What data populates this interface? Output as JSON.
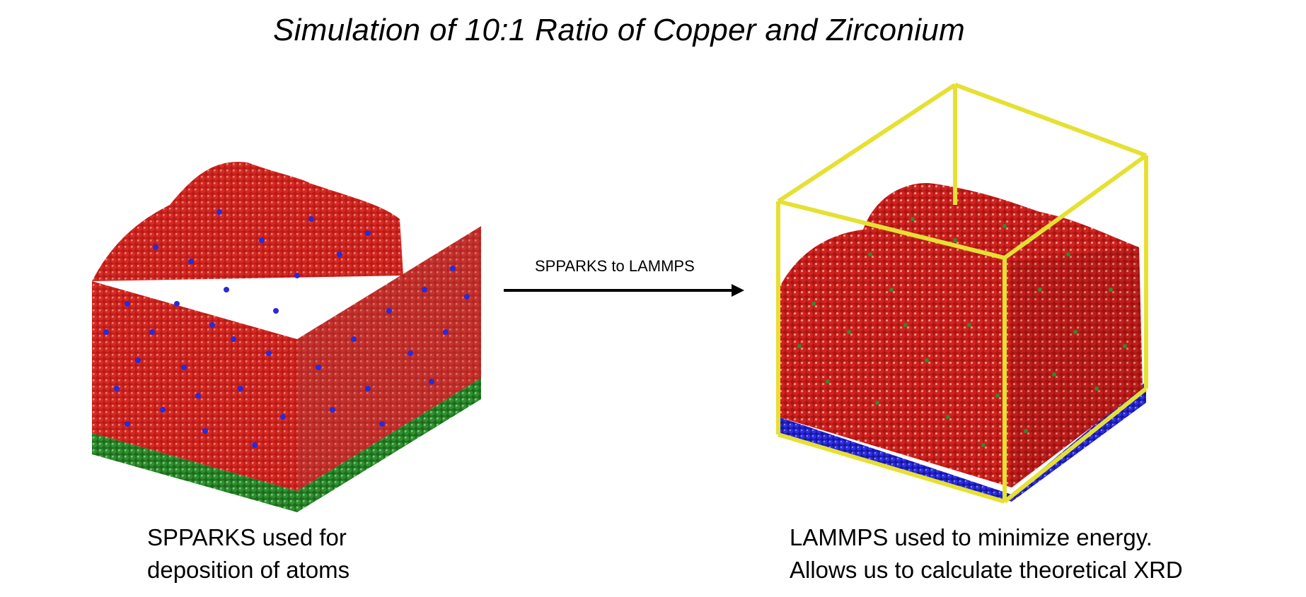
{
  "title": "Simulation of 10:1 Ratio of Copper and Zirconium",
  "arrow_label": "SPPARKS to LAMMPS",
  "left_caption": [
    "SPPARKS used for",
    "deposition of atoms"
  ],
  "right_caption": [
    "LAMMPS used to minimize energy.",
    "Allows us to calculate theoretical XRD"
  ],
  "colors": {
    "copper_atoms": "#d0231f",
    "zirconium_atoms_left": "#2a2ad6",
    "substrate_left": "#2d8a2d",
    "zirconium_atoms_right": "#2d8a2d",
    "substrate_right": "#2a2ad6",
    "simulation_box": "#e6e033",
    "arrow": "#000000"
  }
}
